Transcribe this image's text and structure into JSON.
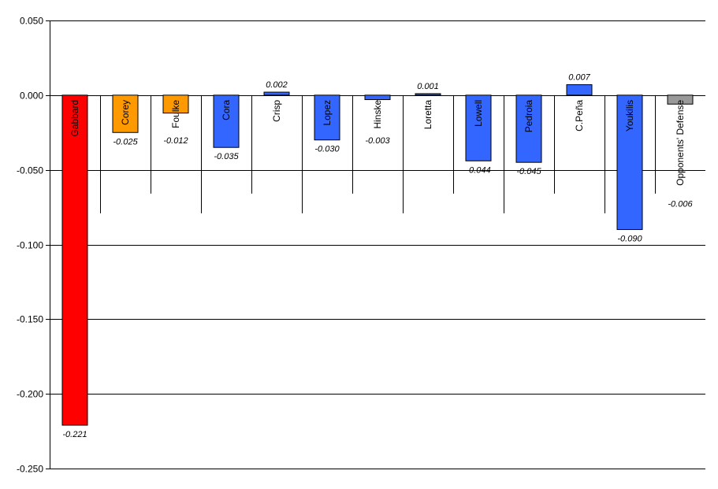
{
  "chart_data": {
    "type": "bar",
    "categories": [
      "Gabbard",
      "Corey",
      "Foulke",
      "Cora",
      "Crisp",
      "Lopez",
      "Hinske",
      "Loretta",
      "Lowell",
      "Pedroia",
      "C.Peña",
      "Youkilis",
      "Opponents' Defense"
    ],
    "values": [
      -0.221,
      -0.025,
      -0.012,
      -0.035,
      0.002,
      -0.03,
      -0.003,
      0.001,
      -0.044,
      -0.045,
      0.007,
      -0.09,
      -0.006
    ],
    "value_labels": [
      "-0.221",
      "-0.025",
      "-0.012",
      "-0.035",
      "0.002",
      "-0.030",
      "-0.003",
      "0.001",
      "-0.044",
      "-0.045",
      "0.007",
      "-0.090",
      "-0.006"
    ],
    "colors": [
      "#ff0000",
      "#ff9900",
      "#ff9900",
      "#3366ff",
      "#3366ff",
      "#3366ff",
      "#3366ff",
      "#3366ff",
      "#3366ff",
      "#3366ff",
      "#3366ff",
      "#3366ff",
      "#999999"
    ],
    "ylim": [
      -0.25,
      0.05
    ],
    "yticks": [
      0.05,
      0.0,
      -0.05,
      -0.1,
      -0.15,
      -0.2,
      -0.25
    ],
    "ytick_labels": [
      "0.050",
      "0.000",
      "-0.050",
      "-0.100",
      "-0.150",
      "-0.200",
      "-0.250"
    ],
    "grid": true,
    "title": "",
    "xlabel": "",
    "ylabel": ""
  }
}
